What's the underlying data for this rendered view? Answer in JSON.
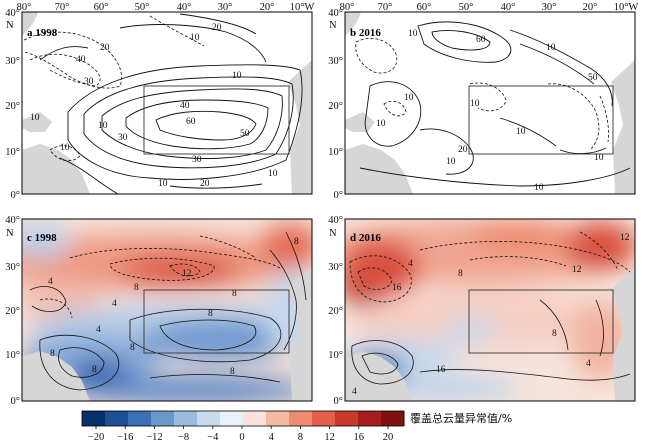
{
  "figure": {
    "lon_ticks_left": [
      "80°",
      "70°",
      "60°",
      "50°",
      "40°",
      "30°",
      "20°",
      "10°W"
    ],
    "lon_ticks_right": [
      "80°",
      "70°",
      "60°",
      "50°",
      "40°",
      "30°",
      "20°",
      "10°W"
    ],
    "lat_ticks": [
      "40°",
      "30°",
      "20°",
      "10°",
      "0°"
    ],
    "lat_unit": "N",
    "panels": [
      {
        "id": "a",
        "label": "a 1998",
        "type": "contour-lines",
        "contour_labels": [
          "20",
          "40",
          "30",
          "10",
          "40",
          "60",
          "50",
          "30",
          "10",
          "30",
          "20",
          "10",
          "10",
          "10",
          "20",
          "10",
          "10"
        ]
      },
      {
        "id": "b",
        "label": "b 2016",
        "type": "contour-lines",
        "contour_labels": [
          "10",
          "60",
          "10",
          "10",
          "50",
          "10",
          "10",
          "10",
          "10",
          "20",
          "10",
          "10"
        ]
      },
      {
        "id": "c",
        "label": "c 1998",
        "type": "color-contour",
        "contour_labels": [
          "4",
          "8",
          "8",
          "12",
          "8",
          "8",
          "4",
          "8",
          "8",
          "8",
          "8",
          "4"
        ]
      },
      {
        "id": "d",
        "label": "d 2016",
        "type": "color-contour",
        "contour_labels": [
          "4",
          "16",
          "8",
          "12",
          "8",
          "4",
          "12",
          "16",
          "4"
        ]
      }
    ],
    "box_region": {
      "lon": [
        -50,
        -15
      ],
      "lat": [
        10,
        25
      ]
    },
    "colorbar": {
      "ticks": [
        "−20",
        "−16",
        "−12",
        "−8",
        "−4",
        "0",
        "4",
        "8",
        "12",
        "16",
        "20"
      ],
      "colors": [
        "#08306b",
        "#1c4f94",
        "#3a6fb5",
        "#6b98cc",
        "#9dbde0",
        "#c8dbee",
        "#e8f0f8",
        "#fbe3db",
        "#f5b9a3",
        "#ee8c72",
        "#e35f4a",
        "#c93a2c",
        "#a51e1e",
        "#7f1010"
      ],
      "title": "覆盖总云量异常值/%"
    },
    "colors": {
      "land": "#d6d6d6",
      "frame": "#000000"
    }
  }
}
